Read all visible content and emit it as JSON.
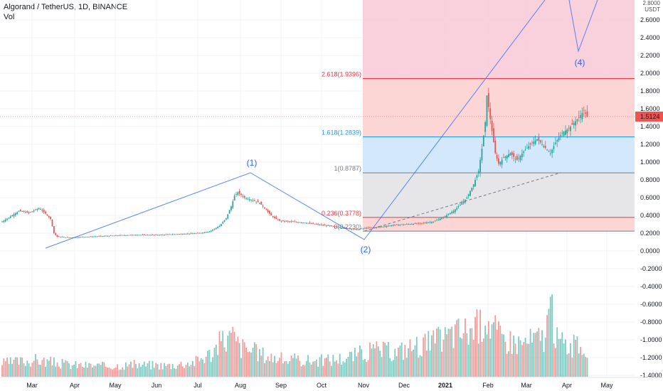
{
  "header": {
    "title": "Algorand / TetherUS, 1D, BINANCE",
    "indicator": "Vol",
    "unit_top": "2.8000",
    "unit": "USDT"
  },
  "chart_data": {
    "type": "candlestick",
    "price_axis": {
      "ticks": [
        "2.6000",
        "2.4000",
        "2.2000",
        "2.0000",
        "1.8000",
        "1.6000",
        "1.4000",
        "1.2000",
        "1.0000",
        "0.8000",
        "0.6000",
        "0.4000",
        "0.2000",
        "0.0000",
        "-0.2000",
        "-0.4000",
        "-0.6000",
        "-0.8000",
        "-1.0000",
        "-1.2000",
        "-1.4000"
      ],
      "range": [
        -1.45,
        2.82
      ],
      "last_price": "1.5124",
      "last_price_value": 1.5124
    },
    "time_axis": {
      "labels": [
        "Mar",
        "Apr",
        "May",
        "Jun",
        "Jul",
        "Aug",
        "Sep",
        "Oct",
        "Nov",
        "Dec",
        "2021",
        "Feb",
        "Mar",
        "Apr",
        "May"
      ],
      "bold_label": "2021"
    },
    "fib_levels": [
      {
        "label": "2.618(1.9396)",
        "value": 1.9396,
        "color": "#f23645"
      },
      {
        "label": "1.618(1.2839)",
        "value": 1.2839,
        "color": "#2196f3"
      },
      {
        "label": "1(0.8787)",
        "value": 0.8787,
        "color": "#787b86"
      },
      {
        "label": "0.236(0.3778)",
        "value": 0.3778,
        "color": "#f23645"
      },
      {
        "label": "0(0.2230)",
        "value": 0.223,
        "color": "#787b86"
      }
    ],
    "wave_labels": [
      "(1)",
      "(2)",
      "(4)"
    ],
    "price_path": [
      [
        0,
        0.33
      ],
      [
        6,
        0.4
      ],
      [
        10,
        0.45
      ],
      [
        16,
        0.43
      ],
      [
        22,
        0.48
      ],
      [
        26,
        0.42
      ],
      [
        29,
        0.36
      ],
      [
        31,
        0.2
      ],
      [
        33,
        0.16
      ],
      [
        40,
        0.15
      ],
      [
        52,
        0.16
      ],
      [
        64,
        0.17
      ],
      [
        78,
        0.18
      ],
      [
        92,
        0.18
      ],
      [
        106,
        0.19
      ],
      [
        118,
        0.2
      ],
      [
        124,
        0.22
      ],
      [
        130,
        0.28
      ],
      [
        134,
        0.37
      ],
      [
        137,
        0.5
      ],
      [
        139,
        0.62
      ],
      [
        141,
        0.66
      ],
      [
        145,
        0.6
      ],
      [
        150,
        0.57
      ],
      [
        154,
        0.54
      ],
      [
        158,
        0.46
      ],
      [
        162,
        0.38
      ],
      [
        166,
        0.34
      ],
      [
        172,
        0.33
      ],
      [
        180,
        0.32
      ],
      [
        188,
        0.3
      ],
      [
        196,
        0.28
      ],
      [
        204,
        0.26
      ],
      [
        212,
        0.24
      ],
      [
        218,
        0.26
      ],
      [
        226,
        0.27
      ],
      [
        234,
        0.29
      ],
      [
        242,
        0.3
      ],
      [
        250,
        0.31
      ],
      [
        258,
        0.33
      ],
      [
        264,
        0.38
      ],
      [
        270,
        0.45
      ],
      [
        274,
        0.52
      ],
      [
        278,
        0.6
      ],
      [
        282,
        0.75
      ],
      [
        285,
        0.9
      ],
      [
        287,
        1.15
      ],
      [
        289,
        1.45
      ],
      [
        290,
        1.75
      ],
      [
        291,
        1.62
      ],
      [
        293,
        1.35
      ],
      [
        295,
        1.1
      ],
      [
        297,
        0.98
      ],
      [
        300,
        1.05
      ],
      [
        304,
        1.1
      ],
      [
        308,
        1.02
      ],
      [
        312,
        1.12
      ],
      [
        316,
        1.2
      ],
      [
        320,
        1.26
      ],
      [
        324,
        1.18
      ],
      [
        328,
        1.1
      ],
      [
        331,
        1.22
      ],
      [
        335,
        1.33
      ],
      [
        339,
        1.38
      ],
      [
        342,
        1.44
      ],
      [
        345,
        1.5
      ],
      [
        348,
        1.58
      ],
      [
        350,
        1.51
      ]
    ],
    "volume_path": [
      [
        0,
        0.2
      ],
      [
        20,
        0.25
      ],
      [
        40,
        0.18
      ],
      [
        60,
        0.16
      ],
      [
        80,
        0.18
      ],
      [
        100,
        0.17
      ],
      [
        115,
        0.22
      ],
      [
        125,
        0.35
      ],
      [
        132,
        0.55
      ],
      [
        138,
        0.6
      ],
      [
        142,
        0.45
      ],
      [
        150,
        0.38
      ],
      [
        160,
        0.3
      ],
      [
        170,
        0.25
      ],
      [
        190,
        0.24
      ],
      [
        205,
        0.28
      ],
      [
        215,
        0.35
      ],
      [
        225,
        0.4
      ],
      [
        235,
        0.36
      ],
      [
        245,
        0.45
      ],
      [
        255,
        0.5
      ],
      [
        262,
        0.55
      ],
      [
        270,
        0.65
      ],
      [
        280,
        0.7
      ],
      [
        286,
        0.75
      ],
      [
        289,
        0.95
      ],
      [
        292,
        0.8
      ],
      [
        298,
        0.58
      ],
      [
        310,
        0.5
      ],
      [
        318,
        0.55
      ],
      [
        324,
        0.6
      ],
      [
        328,
        1.0
      ],
      [
        332,
        0.55
      ],
      [
        340,
        0.45
      ],
      [
        350,
        0.42
      ]
    ]
  }
}
